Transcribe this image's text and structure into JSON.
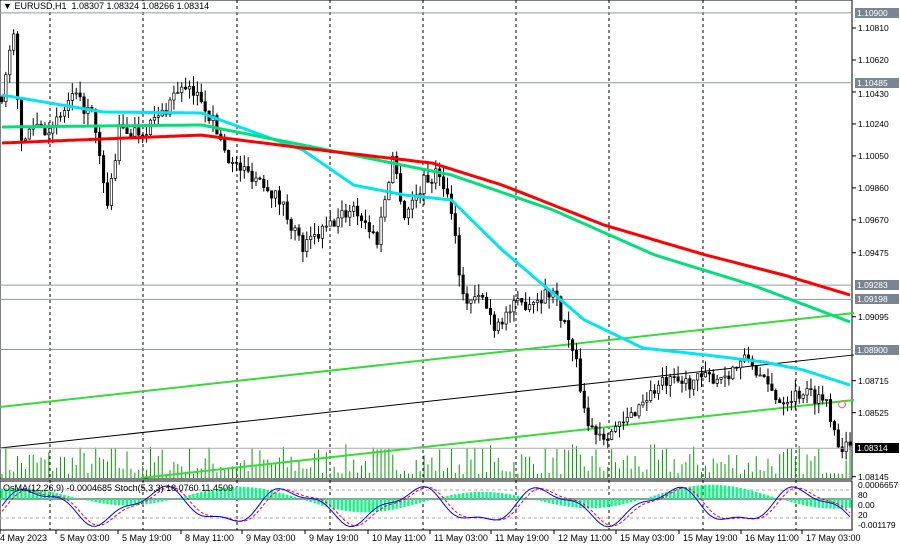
{
  "header": {
    "symbol": "EURUSD,H1",
    "ohlc": "1.08307 1.08324 1.08266 1.08314"
  },
  "oscillator": {
    "label": "OsMA(12,26,9) -0.0004685  Stoch(5,3,3) 18.0760 11.4509",
    "scale_labels": [
      "0.0006657",
      "0.00",
      "-0.001179",
      "80",
      "20"
    ]
  },
  "colors": {
    "bull": "#000000",
    "bear": "#000000",
    "volume": "#00a000",
    "ma_fast": "#00e5ee",
    "ma_mid": "#00e07a",
    "ma_slow": "#ff0000",
    "channel": "#33dd33",
    "osma": "#00ff7f",
    "stoch_main": "#0000ff",
    "stoch_signal": "#ff0000",
    "level": "#8a9aa8"
  },
  "chart_data": {
    "type": "candlestick",
    "title": "EURUSD,H1",
    "price_ticks": [
      "1.10810",
      "1.10620",
      "1.10430",
      "1.10240",
      "1.10050",
      "1.09860",
      "1.09670",
      "1.09475",
      "1.09095",
      "1.08715",
      "1.08525",
      "1.08145"
    ],
    "price_tick_values": [
      1.1081,
      1.1062,
      1.1043,
      1.1024,
      1.1005,
      1.0986,
      1.0967,
      1.09475,
      1.09095,
      1.08715,
      1.08525,
      1.08145
    ],
    "levels": [
      {
        "label": "1.10900",
        "price": 1.109
      },
      {
        "label": "1.10485",
        "price": 1.10485
      },
      {
        "label": "1.09283",
        "price": 1.09283
      },
      {
        "label": "1.09198",
        "price": 1.09198
      },
      {
        "label": "1.08900",
        "price": 1.089
      }
    ],
    "current_price": {
      "label": "1.08314",
      "price": 1.08314
    },
    "time_labels": [
      "4 May 2023",
      "5 May 03:00",
      "5 May 19:00",
      "8 May 11:00",
      "9 May 03:00",
      "9 May 19:00",
      "10 May 11:00",
      "11 May 03:00",
      "11 May 19:00",
      "12 May 11:00",
      "15 May 03:00",
      "15 May 19:00",
      "16 May 11:00",
      "17 May 03:00"
    ],
    "bars": 218,
    "close_path": [
      [
        0,
        1.104
      ],
      [
        3,
        1.1075
      ],
      [
        5,
        1.101
      ],
      [
        8,
        1.1025
      ],
      [
        13,
        1.102
      ],
      [
        18,
        1.104
      ],
      [
        23,
        1.103
      ],
      [
        27,
        1.0975
      ],
      [
        30,
        1.102
      ],
      [
        36,
        1.102
      ],
      [
        41,
        1.103
      ],
      [
        45,
        1.1045
      ],
      [
        51,
        1.104
      ],
      [
        55,
        1.102
      ],
      [
        59,
        1.1
      ],
      [
        67,
        1.099
      ],
      [
        72,
        1.0975
      ],
      [
        77,
        1.095
      ],
      [
        82,
        1.096
      ],
      [
        90,
        1.0975
      ],
      [
        96,
        1.0955
      ],
      [
        100,
        1.1005
      ],
      [
        103,
        1.097
      ],
      [
        108,
        1.099
      ],
      [
        112,
        1.0995
      ],
      [
        115,
        1.0975
      ],
      [
        118,
        1.092
      ],
      [
        123,
        1.092
      ],
      [
        126,
        1.0905
      ],
      [
        131,
        1.0915
      ],
      [
        141,
        1.0925
      ],
      [
        144,
        1.0905
      ],
      [
        147,
        1.088
      ],
      [
        150,
        1.0845
      ],
      [
        154,
        1.084
      ],
      [
        159,
        1.0845
      ],
      [
        164,
        1.086
      ],
      [
        169,
        1.087
      ],
      [
        174,
        1.087
      ],
      [
        185,
        1.0875
      ],
      [
        191,
        1.0885
      ],
      [
        195,
        1.087
      ],
      [
        199,
        1.086
      ],
      [
        205,
        1.0865
      ],
      [
        211,
        1.086
      ],
      [
        214,
        1.0835
      ],
      [
        217,
        1.0831
      ]
    ],
    "moving_averages": [
      {
        "name": "MA fast",
        "color_key": "ma_fast",
        "path": [
          [
            0,
            1.10412
          ],
          [
            26,
            1.10311
          ],
          [
            51,
            1.10305
          ],
          [
            77,
            1.10085
          ],
          [
            90,
            1.09877
          ],
          [
            103,
            1.09818
          ],
          [
            115,
            1.09788
          ],
          [
            128,
            1.09491
          ],
          [
            149,
            1.09076
          ],
          [
            164,
            1.08909
          ],
          [
            180,
            1.08868
          ],
          [
            195,
            1.08826
          ],
          [
            205,
            1.08779
          ],
          [
            217,
            1.08689
          ]
        ]
      },
      {
        "name": "MA mid",
        "color_key": "ma_mid",
        "path": [
          [
            0,
            1.10222
          ],
          [
            51,
            1.10234
          ],
          [
            77,
            1.10115
          ],
          [
            115,
            1.09937
          ],
          [
            141,
            1.09729
          ],
          [
            167,
            1.09462
          ],
          [
            192,
            1.09283
          ],
          [
            217,
            1.09064
          ]
        ]
      },
      {
        "name": "MA slow",
        "color_key": "ma_slow",
        "path": [
          [
            0,
            1.10127
          ],
          [
            51,
            1.10174
          ],
          [
            77,
            1.10097
          ],
          [
            110,
            1.10008
          ],
          [
            128,
            1.09877
          ],
          [
            154,
            1.0964
          ],
          [
            180,
            1.09462
          ],
          [
            200,
            1.09343
          ],
          [
            217,
            1.09224
          ]
        ]
      }
    ],
    "trendlines": [
      {
        "name": "channel-upper",
        "color_key": "channel",
        "from": [
          0,
          1.08559
        ],
        "to": [
          218,
          1.09117
        ]
      },
      {
        "name": "channel-mid",
        "color_key": "bull",
        "from": [
          0,
          1.08315
        ],
        "to": [
          218,
          1.08868
        ]
      },
      {
        "name": "channel-lower",
        "color_key": "channel",
        "from": [
          36,
          1.08137
        ],
        "to": [
          218,
          1.086
        ]
      }
    ]
  }
}
